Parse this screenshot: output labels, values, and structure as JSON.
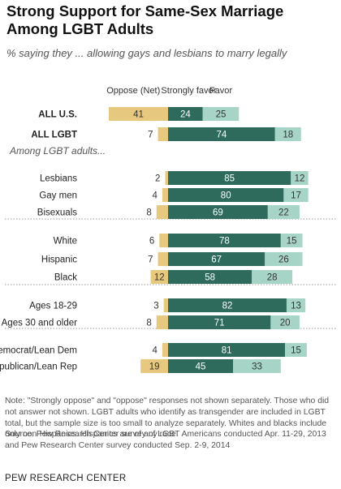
{
  "title": "Strong Support for Same-Sex Marriage Among LGBT Adults",
  "subtitle": "% saying they ... allowing gays and lesbians to marry legally",
  "notes": "Note: \"Strongly oppose\" and \"oppose\" responses not shown separately. Those who did not answer not shown. LGBT adults who identify as transgender are included in LGBT total, but the sample size is too small to analyze separately. Whites and blacks include only non-Hispanics. Hispanics are of any race.",
  "source": "Source: Pew Research Center survey of LGBT Americans conducted Apr. 11-29, 2013 and Pew Research Center survey conducted Sep. 2-9, 2014",
  "organization": "PEW RESEARCH CENTER",
  "colors": {
    "oppose": "#e6c87e",
    "strongly_favor": "#2e6b5c",
    "favor": "#a6d5c8",
    "label_light": "#ffffff",
    "label_dark": "#333333"
  },
  "chart_data": {
    "type": "bar",
    "stacked": true,
    "orientation": "horizontal",
    "legend": [
      "Oppose (Net)",
      "Strongly favor",
      "Favor"
    ],
    "section_label": "Among LGBT adults...",
    "categories": [
      "ALL U.S.",
      "ALL LGBT",
      "Lesbians",
      "Gay men",
      "Bisexuals",
      "White",
      "Hispanic",
      "Black",
      "Ages 18-29",
      "Ages 30 and older",
      "Democrat/Lean Dem",
      "Republican/Lean Rep"
    ],
    "series": [
      {
        "name": "Oppose (Net)",
        "values": [
          41,
          7,
          2,
          4,
          8,
          6,
          7,
          12,
          3,
          8,
          4,
          19
        ]
      },
      {
        "name": "Strongly favor",
        "values": [
          24,
          74,
          85,
          80,
          69,
          78,
          67,
          58,
          82,
          71,
          81,
          45
        ]
      },
      {
        "name": "Favor",
        "values": [
          25,
          18,
          12,
          17,
          22,
          15,
          26,
          28,
          13,
          20,
          15,
          33
        ]
      }
    ]
  }
}
